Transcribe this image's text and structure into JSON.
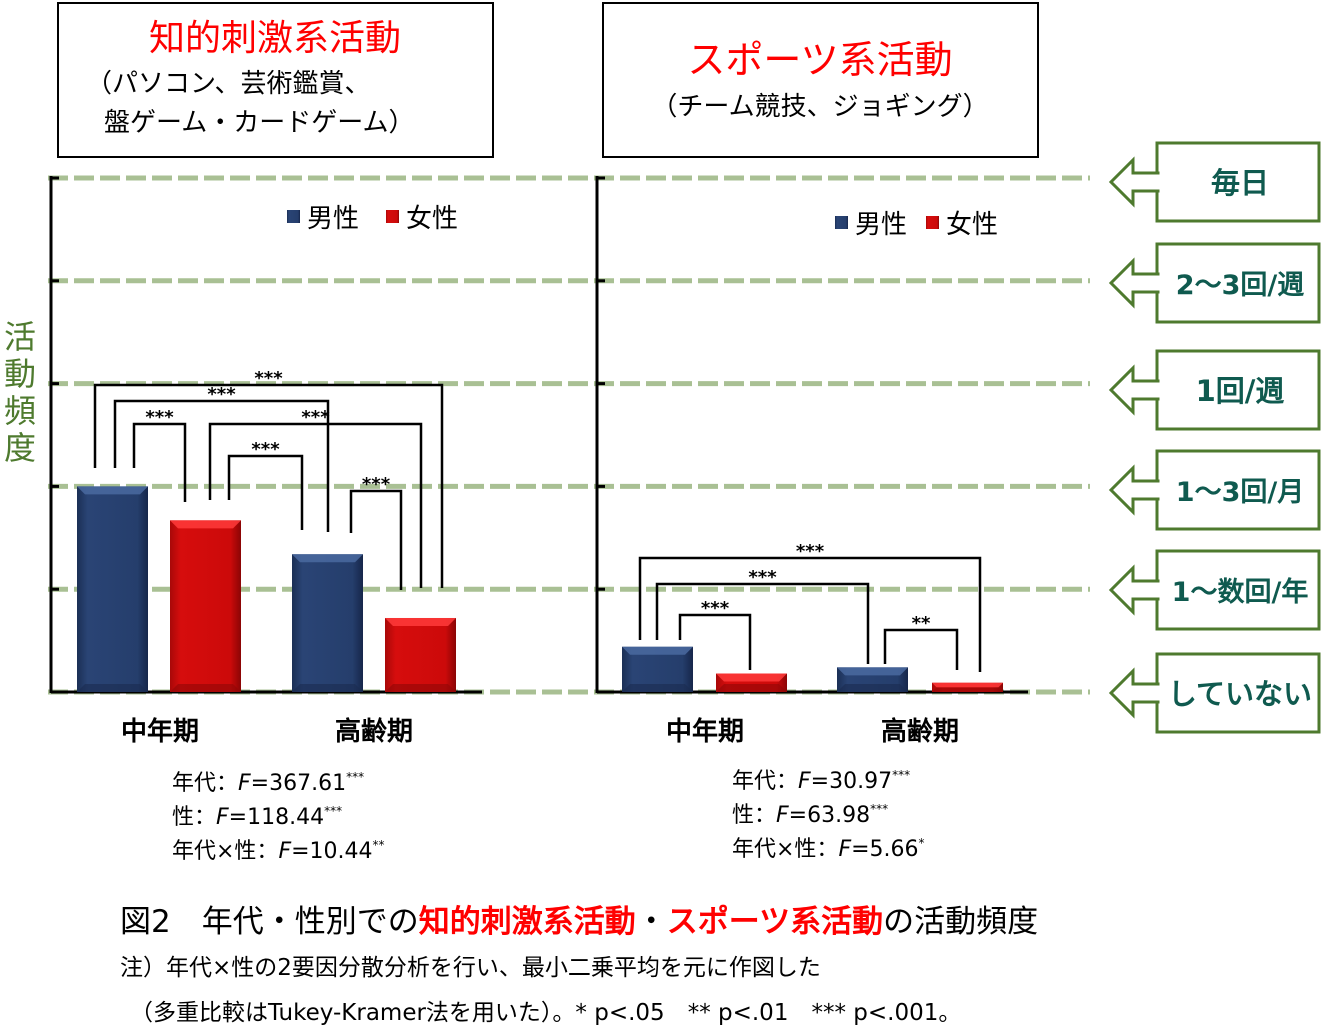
{
  "colors": {
    "male": "#243c6a",
    "female": "#cc0a0a",
    "grid": "#a9c094",
    "label_green": "#4e7a2e",
    "label_text": "#0f5a4f",
    "accent_red": "#ff0000"
  },
  "y_axis_label": "活動頻度",
  "frequency_levels": [
    "していない",
    "1～数回/年",
    "1～3回/月",
    "1回/週",
    "2～3回/週",
    "毎日"
  ],
  "legend": {
    "male": "男性",
    "female": "女性"
  },
  "chart_data": [
    {
      "type": "bar",
      "title": "知的刺激系活動",
      "subtitle_lines": [
        "（パソコン、芸術鑑賞、",
        "盤ゲーム・カードゲーム）"
      ],
      "categories": [
        "中年期",
        "高齢期"
      ],
      "series": [
        {
          "name": "男性",
          "values": [
            2.0,
            1.34
          ]
        },
        {
          "name": "女性",
          "values": [
            1.67,
            0.72
          ]
        }
      ],
      "ylim": [
        0,
        5
      ],
      "ylabel": "活動頻度",
      "grid": true,
      "legend_position": "top-right",
      "comparisons": [
        {
          "bars": [
            0,
            3
          ],
          "sig": "***"
        },
        {
          "bars": [
            0,
            2
          ],
          "sig": "***"
        },
        {
          "bars": [
            0,
            1
          ],
          "sig": "***"
        },
        {
          "bars": [
            1,
            3
          ],
          "sig": "***"
        },
        {
          "bars": [
            1,
            2
          ],
          "sig": "***"
        },
        {
          "bars": [
            2,
            3
          ],
          "sig": "***"
        }
      ],
      "stats": [
        {
          "label": "年代：",
          "symbol": "F",
          "value": "=367.61",
          "sig": "***"
        },
        {
          "label": "性：",
          "symbol": "F",
          "value": "=118.44",
          "sig": "***"
        },
        {
          "label": "年代×性：",
          "symbol": "F",
          "value": "=10.44",
          "sig": "**"
        }
      ]
    },
    {
      "type": "bar",
      "title": "スポーツ系活動",
      "subtitle_lines": [
        "（チーム競技、ジョギング）"
      ],
      "categories": [
        "中年期",
        "高齢期"
      ],
      "series": [
        {
          "name": "男性",
          "values": [
            0.44,
            0.24
          ]
        },
        {
          "name": "女性",
          "values": [
            0.18,
            0.09
          ]
        }
      ],
      "ylim": [
        0,
        5
      ],
      "ylabel": "活動頻度",
      "grid": true,
      "legend_position": "top-right",
      "comparisons": [
        {
          "bars": [
            0,
            3
          ],
          "sig": "***"
        },
        {
          "bars": [
            0,
            2
          ],
          "sig": "***"
        },
        {
          "bars": [
            0,
            1
          ],
          "sig": "***"
        },
        {
          "bars": [
            2,
            3
          ],
          "sig": "**"
        }
      ],
      "stats": [
        {
          "label": "年代：",
          "symbol": "F",
          "value": "=30.97",
          "sig": "***"
        },
        {
          "label": "性：",
          "symbol": "F",
          "value": "=63.98",
          "sig": "***"
        },
        {
          "label": "年代×性：",
          "symbol": "F",
          "value": "=5.66",
          "sig": "*"
        }
      ]
    }
  ],
  "caption": {
    "segments": [
      {
        "text": "図2　年代・性別での",
        "highlight": false
      },
      {
        "text": "知的刺激系活動",
        "highlight": true
      },
      {
        "text": "・",
        "highlight": false
      },
      {
        "text": "スポーツ系活動",
        "highlight": true
      },
      {
        "text": "の活動頻度",
        "highlight": false
      }
    ],
    "note_line1": "注）年代×性の2要因分散分析を行い、最小二乗平均を元に作図した",
    "note_line2": "（多重比較はTukey-Kramer法を用いた）。* p<.05　** p<.01　*** p<.001。"
  }
}
